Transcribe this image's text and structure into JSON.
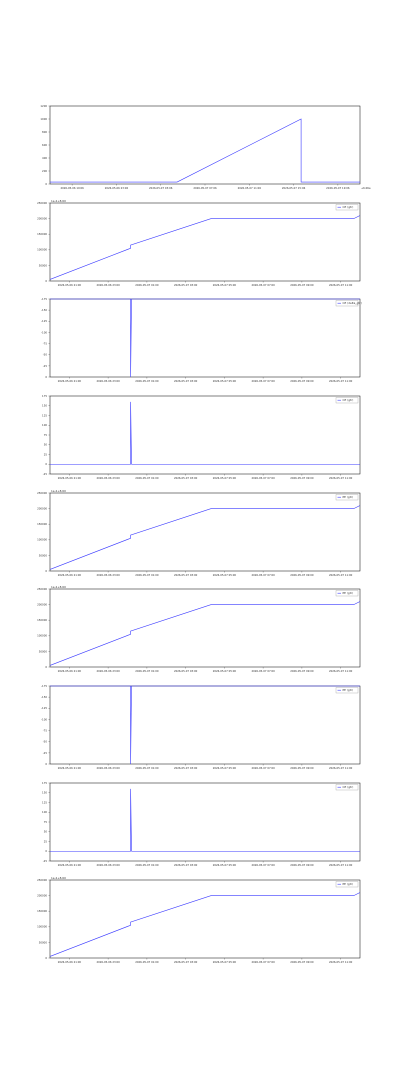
{
  "colors": {
    "series": "#3b3bff",
    "axis": "#000000",
    "tick": "#555555",
    "legend_border": "#999999"
  },
  "chart_data": [
    {
      "type": "line",
      "ylim": [
        0,
        1200
      ],
      "y_ticks": [
        "0",
        "200",
        "400",
        "600",
        "800",
        "1000",
        "1200"
      ],
      "x_ticks": [
        "2026-05-06 19:06",
        "2026-05-06 23:06",
        "2026-05-07 03:06",
        "2026-05-07 07:06",
        "2026-05-07 11:06",
        "2026-05-07 15:06",
        "2026-05-07 19:06"
      ],
      "x_end_label": "+6.06e",
      "legend": "",
      "y_offset": "",
      "grid": false,
      "series": [
        {
          "x": [
            0,
            0.41,
            0.81,
            0.81,
            1.0
          ],
          "values": [
            30,
            30,
            1000,
            30,
            30
          ]
        }
      ]
    },
    {
      "type": "line",
      "ylim": [
        0,
        2500
      ],
      "y_ticks": [
        "0",
        "50000",
        "100000",
        "150000",
        "200000",
        "250000"
      ],
      "x_ticks": [
        "2026-05-06 21:00",
        "2026-05-06 23:00",
        "2026-05-07 01:00",
        "2026-05-07 03:00",
        "2026-05-07 05:00",
        "2026-05-07 07:00",
        "2026-05-07 09:00",
        "2026-05-07 11:00"
      ],
      "legend": "CE (gtr)",
      "y_offset": "1e-2+8.60",
      "grid": false,
      "series": [
        {
          "x": [
            0,
            0.26,
            0.26,
            0.52,
            0.98,
            1.0
          ],
          "values": [
            50,
            1050,
            1150,
            2000,
            2000,
            2100
          ]
        }
      ]
    },
    {
      "type": "line",
      "ylim": [
        -175,
        0
      ],
      "y_ticks": [
        "0",
        "-25",
        "-50",
        "-75",
        "-100",
        "-125",
        "-150",
        "-175"
      ],
      "x_ticks": [
        "2026-05-06 21:00",
        "2026-05-06 23:00",
        "2026-05-07 01:00",
        "2026-05-07 03:00",
        "2026-05-07 05:00",
        "2026-05-07 07:00",
        "2026-05-07 09:00",
        "2026-05-07 11:00"
      ],
      "legend": "CE (delta_gtr)",
      "y_offset": "",
      "grid": false,
      "series": [
        {
          "x": [
            0,
            0.26,
            0.26,
            0.263,
            1.0
          ],
          "values": [
            0,
            0,
            -175,
            0,
            0
          ]
        }
      ]
    },
    {
      "type": "line",
      "ylim": [
        -25,
        175
      ],
      "y_ticks": [
        "-25",
        "0",
        "25",
        "50",
        "75",
        "100",
        "125",
        "150",
        "175"
      ],
      "x_ticks": [
        "2026-05-06 21:00",
        "2026-05-06 23:00",
        "2026-05-07 01:00",
        "2026-05-07 03:00",
        "2026-05-07 05:00",
        "2026-05-07 07:00",
        "2026-05-07 09:00",
        "2026-05-07 11:00"
      ],
      "legend": "CE (gtr)",
      "y_offset": "",
      "grid": false,
      "series": [
        {
          "x": [
            0,
            0.26,
            0.26,
            0.263,
            1.0
          ],
          "values": [
            0,
            0,
            160,
            0,
            0
          ]
        }
      ]
    },
    {
      "type": "line",
      "ylim": [
        0,
        2500
      ],
      "y_ticks": [
        "0",
        "50000",
        "100000",
        "150000",
        "200000",
        "250000"
      ],
      "x_ticks": [
        "2026-05-06 21:00",
        "2026-05-06 23:00",
        "2026-05-07 01:00",
        "2026-05-07 03:00",
        "2026-05-07 05:00",
        "2026-05-07 07:00",
        "2026-05-07 09:00",
        "2026-05-07 11:00"
      ],
      "legend": "PE (gtr)",
      "y_offset": "1e-2+8.60",
      "grid": false,
      "series": [
        {
          "x": [
            0,
            0.26,
            0.26,
            0.52,
            0.98,
            1.0
          ],
          "values": [
            50,
            1050,
            1150,
            2000,
            2000,
            2100
          ]
        }
      ]
    },
    {
      "type": "line",
      "ylim": [
        0,
        2500
      ],
      "y_ticks": [
        "0",
        "50000",
        "100000",
        "150000",
        "200000",
        "250000"
      ],
      "x_ticks": [
        "2026-05-06 21:00",
        "2026-05-06 23:00",
        "2026-05-07 01:00",
        "2026-05-07 03:00",
        "2026-05-07 05:00",
        "2026-05-07 07:00",
        "2026-05-07 09:00",
        "2026-05-07 11:00"
      ],
      "legend": "PE (gtr)",
      "y_offset": "1e-2+8.60",
      "grid": false,
      "series": [
        {
          "x": [
            0,
            0.26,
            0.26,
            0.52,
            0.98,
            1.0
          ],
          "values": [
            50,
            1050,
            1150,
            2000,
            2000,
            2100
          ]
        }
      ]
    },
    {
      "type": "line",
      "ylim": [
        -175,
        0
      ],
      "y_ticks": [
        "0",
        "-25",
        "-50",
        "-75",
        "-100",
        "-125",
        "-150",
        "-175"
      ],
      "x_ticks": [
        "2026-05-06 21:00",
        "2026-05-06 23:00",
        "2026-05-07 01:00",
        "2026-05-07 03:00",
        "2026-05-07 05:00",
        "2026-05-07 07:00",
        "2026-05-07 09:00",
        "2026-05-07 11:00"
      ],
      "legend": "PE (gtr)",
      "y_offset": "",
      "grid": false,
      "series": [
        {
          "x": [
            0,
            0.26,
            0.26,
            0.263,
            1.0
          ],
          "values": [
            0,
            0,
            -175,
            0,
            0
          ]
        }
      ]
    },
    {
      "type": "line",
      "ylim": [
        -25,
        175
      ],
      "y_ticks": [
        "-25",
        "0",
        "25",
        "50",
        "75",
        "100",
        "125",
        "150",
        "175"
      ],
      "x_ticks": [
        "2026-05-06 21:00",
        "2026-05-06 23:00",
        "2026-05-07 01:00",
        "2026-05-07 03:00",
        "2026-05-07 05:00",
        "2026-05-07 07:00",
        "2026-05-07 09:00",
        "2026-05-07 11:00"
      ],
      "legend": "CE (gtr)",
      "y_offset": "",
      "grid": false,
      "series": [
        {
          "x": [
            0,
            0.26,
            0.26,
            0.263,
            1.0
          ],
          "values": [
            0,
            0,
            160,
            0,
            0
          ]
        }
      ]
    },
    {
      "type": "line",
      "ylim": [
        0,
        2500
      ],
      "y_ticks": [
        "0",
        "50000",
        "100000",
        "150000",
        "200000",
        "250000"
      ],
      "x_ticks": [
        "2026-05-06 21:00",
        "2026-05-06 23:00",
        "2026-05-07 01:00",
        "2026-05-07 03:00",
        "2026-05-07 05:00",
        "2026-05-07 07:00",
        "2026-05-07 09:00",
        "2026-05-07 11:00"
      ],
      "legend": "PE (gtr)",
      "y_offset": "1e-2+8.60",
      "grid": false,
      "series": [
        {
          "x": [
            0,
            0.26,
            0.26,
            0.52,
            0.98,
            1.0
          ],
          "values": [
            50,
            1050,
            1150,
            2000,
            2000,
            2100
          ]
        }
      ]
    }
  ]
}
